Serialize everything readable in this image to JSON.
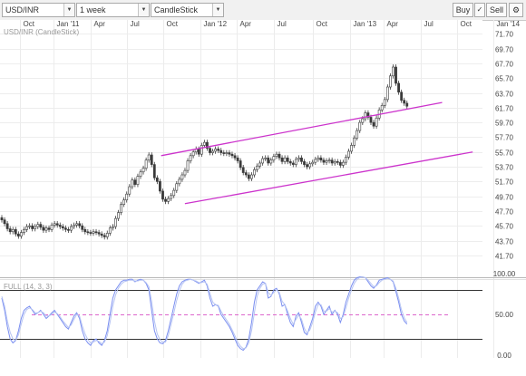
{
  "toolbar": {
    "symbol": "USD/INR",
    "interval": "1 week",
    "chart_style": "CandleStick",
    "buy_label": "Buy",
    "sell_label": "Sell",
    "tools_icon": "pen-check-icon",
    "settings_icon": "gear-icon",
    "dropdown_icon": "chevron-down-icon"
  },
  "colors": {
    "up_candle": "#ffffff",
    "down_candle": "#3a3a3a",
    "channel": "#cc33cc",
    "stoch_k": "#7a8ef0",
    "stoch_d": "#b6c4f3",
    "stoch_mid": "#dd66cc"
  },
  "chart_data": [
    {
      "type": "candlestick",
      "title": "USD/INR (CandleStick)",
      "x_ticks": [
        "Oct",
        "Jan '11",
        "Apr",
        "Jul",
        "Oct",
        "Jan '12",
        "Apr",
        "Jul",
        "Oct",
        "Jan '13",
        "Apr",
        "Jul",
        "Oct",
        "Jan '14"
      ],
      "y_ticks": [
        "41.70",
        "43.70",
        "45.70",
        "47.70",
        "49.70",
        "51.70",
        "53.70",
        "55.70",
        "57.70",
        "59.70",
        "61.70",
        "63.70",
        "65.70",
        "67.70",
        "69.70",
        "71.70"
      ],
      "ylim": [
        40.7,
        72.6
      ],
      "x_range": [
        0,
        171
      ],
      "close": [
        46.5,
        46.0,
        45.3,
        44.9,
        45.2,
        44.6,
        44.3,
        44.8,
        45.2,
        45.6,
        45.7,
        45.3,
        45.6,
        45.9,
        45.5,
        45.1,
        45.4,
        45.2,
        45.8,
        46.0,
        45.8,
        45.6,
        45.4,
        45.2,
        45.1,
        45.6,
        45.8,
        46.0,
        45.7,
        45.2,
        44.9,
        44.8,
        44.7,
        44.9,
        44.8,
        44.6,
        44.4,
        44.2,
        44.7,
        45.4,
        45.6,
        46.7,
        47.5,
        48.6,
        49.2,
        50.0,
        51.0,
        51.9,
        51.3,
        52.4,
        53.0,
        53.5,
        54.6,
        55.3,
        54.0,
        52.2,
        51.7,
        50.4,
        49.3,
        49.0,
        49.4,
        49.8,
        50.5,
        51.4,
        52.0,
        52.6,
        53.2,
        54.5,
        55.2,
        55.7,
        56.1,
        55.4,
        56.6,
        57.0,
        56.2,
        55.6,
        55.8,
        56.1,
        55.9,
        55.6,
        55.5,
        55.6,
        55.4,
        55.2,
        54.9,
        54.5,
        53.6,
        52.9,
        52.6,
        52.1,
        52.6,
        53.3,
        53.8,
        54.2,
        54.8,
        54.9,
        54.2,
        54.6,
        55.1,
        55.4,
        54.9,
        54.4,
        54.9,
        54.4,
        54.2,
        54.0,
        54.7,
        54.9,
        54.4,
        54.0,
        53.7,
        54.1,
        54.3,
        54.7,
        54.9,
        54.6,
        54.3,
        54.5,
        54.6,
        54.2,
        54.4,
        54.3,
        53.9,
        54.3,
        55.0,
        55.8,
        56.6,
        57.6,
        58.6,
        59.7,
        60.2,
        61.0,
        60.4,
        59.7,
        59.2,
        60.3,
        61.4,
        62.0,
        62.8,
        64.5,
        66.0,
        67.2,
        65.0,
        63.8,
        62.7,
        62.3,
        61.9
      ],
      "overlays": [
        {
          "type": "channel-line",
          "points": [
            [
              97,
              55.2
            ],
            [
              138,
              57.4
            ],
            [
              256,
              62.4
            ]
          ]
        },
        {
          "type": "channel-line",
          "points": [
            [
              111,
              48.7
            ],
            [
              153,
              50.3
            ],
            [
              274,
              55.7
            ]
          ]
        }
      ]
    },
    {
      "type": "line",
      "title": "FULL (14, 3, 3)",
      "y_ticks": [
        "100.00",
        "50.00",
        "0.00"
      ],
      "ylim": [
        0,
        100
      ],
      "series": [
        {
          "values": [
            70,
            55,
            35,
            20,
            15,
            18,
            30,
            45,
            55,
            58,
            60,
            55,
            50,
            52,
            55,
            50,
            45,
            48,
            52,
            55,
            50,
            45,
            40,
            35,
            32,
            40,
            48,
            52,
            45,
            30,
            20,
            15,
            12,
            18,
            20,
            15,
            12,
            18,
            30,
            50,
            70,
            80,
            85,
            90,
            92,
            92,
            93,
            93,
            90,
            92,
            93,
            92,
            88,
            80,
            55,
            30,
            20,
            15,
            14,
            18,
            30,
            45,
            60,
            75,
            85,
            90,
            92,
            93,
            93,
            92,
            90,
            88,
            90,
            92,
            85,
            70,
            60,
            62,
            60,
            50,
            45,
            40,
            35,
            28,
            20,
            12,
            8,
            6,
            10,
            20,
            40,
            65,
            80,
            85,
            90,
            88,
            70,
            72,
            80,
            82,
            75,
            60,
            62,
            50,
            40,
            35,
            48,
            52,
            40,
            28,
            25,
            35,
            45,
            60,
            65,
            60,
            50,
            55,
            60,
            50,
            55,
            50,
            40,
            50,
            65,
            75,
            85,
            92,
            95,
            96,
            96,
            95,
            90,
            85,
            82,
            86,
            92,
            93,
            94,
            95,
            93,
            90,
            78,
            65,
            50,
            42,
            38
          ]
        },
        {
          "values": [
            72,
            60,
            42,
            28,
            20,
            18,
            25,
            38,
            50,
            56,
            58,
            56,
            52,
            52,
            54,
            52,
            48,
            48,
            50,
            53,
            51,
            47,
            42,
            38,
            34,
            37,
            44,
            50,
            48,
            36,
            26,
            19,
            15,
            16,
            18,
            17,
            14,
            16,
            24,
            40,
            60,
            74,
            82,
            87,
            90,
            91,
            92,
            92,
            91,
            91,
            92,
            92,
            89,
            84,
            66,
            42,
            26,
            19,
            16,
            16,
            24,
            38,
            52,
            67,
            79,
            87,
            91,
            92,
            93,
            92,
            91,
            89,
            89,
            90,
            87,
            76,
            65,
            62,
            61,
            54,
            48,
            43,
            38,
            31,
            24,
            16,
            11,
            8,
            9,
            15,
            30,
            52,
            72,
            82,
            87,
            88,
            77,
            73,
            77,
            80,
            77,
            66,
            62,
            54,
            45,
            38,
            44,
            49,
            44,
            33,
            27,
            31,
            40,
            53,
            62,
            62,
            54,
            54,
            57,
            53,
            54,
            52,
            45,
            47,
            58,
            70,
            80,
            88,
            93,
            95,
            96,
            95,
            92,
            88,
            84,
            85,
            89,
            92,
            93,
            94,
            93,
            91,
            82,
            70,
            56,
            46,
            40
          ]
        }
      ],
      "reference_lines": [
        80,
        50,
        20
      ]
    }
  ]
}
